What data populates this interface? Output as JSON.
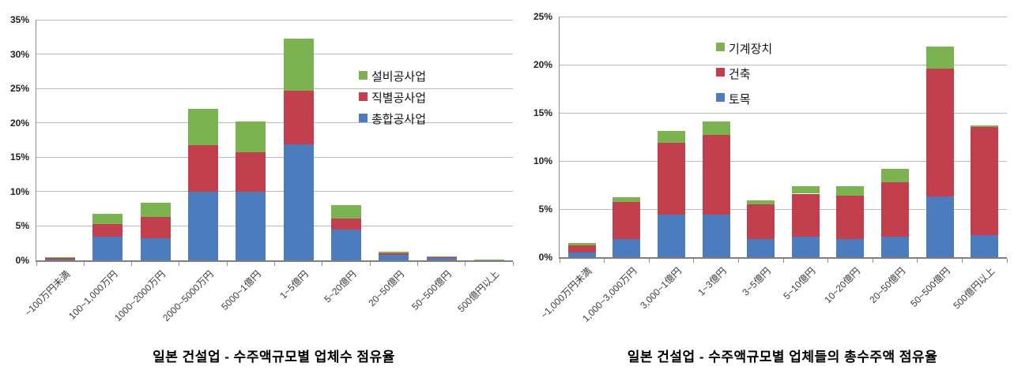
{
  "page": {
    "background": "#FFFFFF"
  },
  "chart_data": [
    {
      "type": "bar",
      "stacked": true,
      "title": "일본 건설업 - 수주액규모별 업체수 점유율",
      "xlabel": "",
      "ylabel": "",
      "ymax": 35,
      "ytick_step": 5,
      "ytick_labels": [
        "0%",
        "5%",
        "10%",
        "15%",
        "20%",
        "25%",
        "30%",
        "35%"
      ],
      "grid": true,
      "legend_position": "inside-upper-right",
      "categories": [
        "~100万円未満",
        "100~1,000万円",
        "1000~2000万円",
        "2000~5000万円",
        "5000~1億円",
        "1~5億円",
        "5~20億円",
        "20~50億円",
        "50~500億円",
        "500億円以上"
      ],
      "series": [
        {
          "name": "총합공사업",
          "color": "#4D7CBE",
          "values": [
            0.15,
            3.4,
            3.2,
            10.0,
            10.0,
            16.9,
            4.5,
            0.8,
            0.35,
            0.02
          ]
        },
        {
          "name": "직별공사업",
          "color": "#C2404D",
          "values": [
            0.15,
            1.9,
            3.1,
            6.7,
            5.7,
            7.8,
            1.6,
            0.2,
            0.1,
            0.02
          ]
        },
        {
          "name": "설비공사업",
          "color": "#7AB34F",
          "values": [
            0.1,
            1.5,
            2.1,
            5.3,
            4.5,
            7.6,
            1.9,
            0.3,
            0.1,
            0.01
          ]
        }
      ],
      "legend": [
        "설비공사업",
        "직별공사업",
        "총합공사업"
      ]
    },
    {
      "type": "bar",
      "stacked": true,
      "title": "일본 건설업 - 수주액규모별 업체들의 총수주액 점유율",
      "xlabel": "",
      "ylabel": "",
      "ymax": 25,
      "ytick_step": 5,
      "ytick_labels": [
        "0%",
        "5%",
        "10%",
        "15%",
        "20%",
        "25%"
      ],
      "grid": true,
      "legend_position": "inside-upper-middle",
      "categories": [
        "~1,000万円未満",
        "1,000~3,000万円",
        "3,000~1億円",
        "1~3億円",
        "3~5億円",
        "5~10億円",
        "10~20億円",
        "20~50億円",
        "50~500億円",
        "500億円以上"
      ],
      "series": [
        {
          "name": "토목",
          "color": "#4D7CBE",
          "values": [
            0.5,
            1.9,
            4.4,
            4.4,
            1.9,
            2.1,
            1.9,
            2.1,
            6.3,
            2.3
          ]
        },
        {
          "name": "건축",
          "color": "#C2404D",
          "values": [
            0.75,
            3.8,
            7.5,
            8.3,
            3.6,
            4.5,
            4.5,
            5.7,
            13.3,
            11.2
          ]
        },
        {
          "name": "기계장치",
          "color": "#7AB34F",
          "values": [
            0.25,
            0.5,
            1.2,
            1.4,
            0.4,
            0.8,
            1.0,
            1.4,
            2.3,
            0.15
          ]
        }
      ],
      "legend": [
        "기계장치",
        "건축",
        "토목"
      ]
    }
  ]
}
